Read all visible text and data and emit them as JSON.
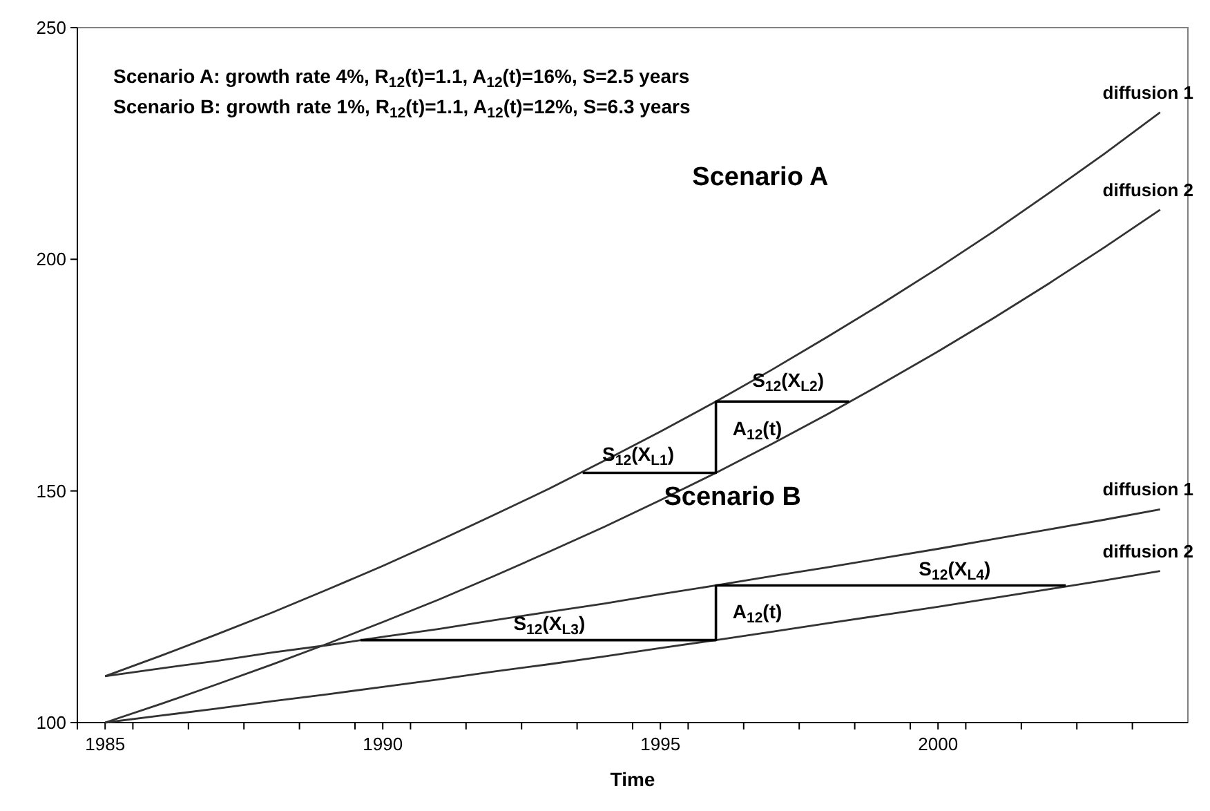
{
  "chart_data": {
    "type": "line",
    "xlabel": "Time",
    "x": [
      1985,
      1986,
      1987,
      1988,
      1989,
      1990,
      1991,
      1992,
      1993,
      1994,
      1995,
      1996,
      1997,
      1998,
      1999,
      2000,
      2001,
      2002,
      2003,
      2004
    ],
    "xlim": [
      1984.5,
      2004.5
    ],
    "xticks": [
      {
        "value": 1984.5,
        "label": null
      },
      {
        "value": 1985,
        "label": "1985"
      },
      {
        "value": 1985.5,
        "label": null
      },
      {
        "value": 1986.5,
        "label": null
      },
      {
        "value": 1987.5,
        "label": null
      },
      {
        "value": 1988.5,
        "label": null
      },
      {
        "value": 1989.5,
        "label": null
      },
      {
        "value": 1990,
        "label": "1990"
      },
      {
        "value": 1990.5,
        "label": null
      },
      {
        "value": 1991.5,
        "label": null
      },
      {
        "value": 1992.5,
        "label": null
      },
      {
        "value": 1993.5,
        "label": null
      },
      {
        "value": 1994.5,
        "label": null
      },
      {
        "value": 1995,
        "label": "1995"
      },
      {
        "value": 1995.5,
        "label": null
      },
      {
        "value": 1996.5,
        "label": null
      },
      {
        "value": 1997.5,
        "label": null
      },
      {
        "value": 1998.5,
        "label": null
      },
      {
        "value": 1999.5,
        "label": null
      },
      {
        "value": 2000,
        "label": "2000"
      },
      {
        "value": 2000.5,
        "label": null
      },
      {
        "value": 2001.5,
        "label": null
      },
      {
        "value": 2002.5,
        "label": null
      },
      {
        "value": 2003.5,
        "label": null
      }
    ],
    "ylim": [
      100,
      250
    ],
    "yticks": [
      100,
      150,
      200,
      250
    ],
    "grid": false,
    "marker": "none",
    "line_style": "solid",
    "series": [
      {
        "name": "diffusion 1",
        "color": "#333333",
        "values": [
          110.0,
          114.4,
          119.0,
          123.7,
          128.7,
          133.8,
          139.2,
          144.8,
          150.5,
          156.6,
          162.8,
          169.3,
          176.1,
          183.2,
          190.5,
          198.1,
          206.0,
          214.3,
          222.8,
          231.7
        ]
      },
      {
        "name": "diffusion 2",
        "color": "#333333",
        "values": [
          100.0,
          104.0,
          108.2,
          112.5,
          117.0,
          121.7,
          126.5,
          131.6,
          136.9,
          142.3,
          148.0,
          153.9,
          160.1,
          166.5,
          173.2,
          180.1,
          187.3,
          194.8,
          202.6,
          210.7
        ]
      },
      {
        "name": "diffusion 1",
        "color": "#333333",
        "values": [
          110.0,
          111.7,
          113.3,
          115.1,
          116.7,
          118.5,
          120.2,
          122.1,
          123.9,
          125.7,
          127.7,
          129.6,
          131.6,
          133.5,
          135.5,
          137.5,
          139.6,
          141.7,
          143.8,
          146.0
        ]
      },
      {
        "name": "diffusion 2",
        "color": "#333333",
        "values": [
          100.0,
          101.5,
          103.0,
          104.6,
          106.1,
          107.7,
          109.3,
          111.0,
          112.6,
          114.3,
          116.1,
          117.8,
          119.6,
          121.4,
          123.2,
          125.0,
          126.9,
          128.8,
          130.7,
          132.7
        ]
      },
      {
        "color": "#000000",
        "x": [
          1993.6,
          1996,
          1996,
          1998.4
        ],
        "values": [
          153.9,
          153.9,
          169.3,
          169.3
        ]
      },
      {
        "color": "#000000",
        "x": [
          1989.6,
          1996,
          1996,
          2002.3
        ],
        "values": [
          117.8,
          117.8,
          129.6,
          129.6
        ]
      }
    ],
    "annotations": [
      "Scenario A: growth rate 4%, R$_{12}$(t)=1.1, A$_{12}$(t)=16%, S=2.5 years",
      "Scenario B: growth rate 1%, R$_{12}$(t)=1.1, A$_{12}$(t)=12%, S=6.3 years",
      "Scenario A",
      "Scenario B",
      "S$_{12}$(X$_{L2}$)",
      "S$_{12}$(X$_{L1}$)",
      "A$_{12}$(t)",
      "S$_{12}$(X$_{L3}$)",
      "A$_{12}$(t)",
      "S$_{12}$(X$_{L4}$)"
    ]
  }
}
